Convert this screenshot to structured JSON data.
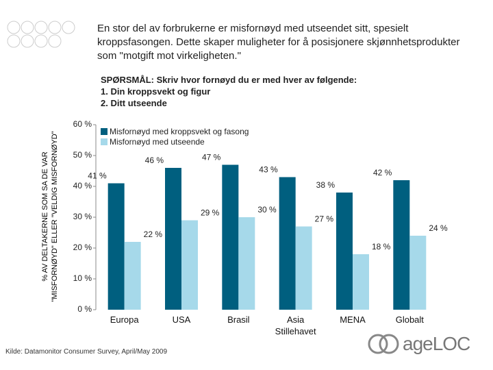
{
  "chart_data": {
    "type": "bar",
    "title": "En stor del av forbrukerne er misfornøyd med utseendet sitt, spesielt kroppsfasongen. Dette skaper muligheter for å posisjonere skjønnhetsprodukter som \"motgift mot virkeligheten.\"",
    "question": [
      "SPØRSMÅL: Skriv hvor fornøyd du er med hver av følgende:",
      "1. Din kroppsvekt og figur",
      "2. Ditt utseende"
    ],
    "ylabel": [
      "% AV DELTAKERNE SOM SA DE VAR",
      "\"MISFORNØYD\" ELLER \"VELDIG MISFORNØYD\""
    ],
    "categories": [
      "Europa",
      "USA",
      "Brasil",
      "Asia Stillehavet",
      "MENA",
      "Globalt"
    ],
    "series": [
      {
        "name": "Misfornøyd med kroppsvekt og fasong",
        "color": "#005f7f",
        "values": [
          41,
          46,
          47,
          43,
          38,
          42
        ],
        "value_labels": [
          "41 %",
          "46 %",
          "47 %",
          "43 %",
          "38 %",
          "42 %"
        ]
      },
      {
        "name": "Misfornøyd med utseende",
        "color": "#a6d9ea",
        "values": [
          22,
          29,
          30,
          27,
          18,
          24
        ],
        "value_labels": [
          "22 %",
          "29 %",
          "30 %",
          "27 %",
          "18 %",
          "24 %"
        ]
      }
    ],
    "ylim": [
      0,
      60
    ],
    "yticks": [
      {
        "value": 0,
        "label": "0 %"
      },
      {
        "value": 10,
        "label": "10 %"
      },
      {
        "value": 20,
        "label": "20 %"
      },
      {
        "value": 30,
        "label": "30 %"
      },
      {
        "value": 40,
        "label": "40 %"
      },
      {
        "value": 50,
        "label": "50 %"
      },
      {
        "value": 60,
        "label": "60 %"
      }
    ],
    "source": "Kilde: Datamonitor Consumer Survey, April/May 2009",
    "logo": "ageLOC"
  }
}
